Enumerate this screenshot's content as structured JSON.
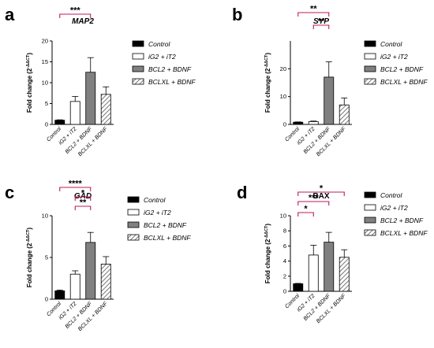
{
  "colors": {
    "control": "#000000",
    "ig2": "#ffffff",
    "bcl2": "#808080",
    "bclxl_hatch": "#888888"
  },
  "chart_data": [
    {
      "panel": "a",
      "type": "bar",
      "title": "MAP2",
      "title_italic": true,
      "ylabel": "Fold change (2",
      "ylabel_sup": "-ΔΔCT",
      "ylabel_close": ")",
      "ylim": [
        0,
        20
      ],
      "yticks": [
        "0",
        "5",
        "10",
        "15",
        "20"
      ],
      "categories": [
        "Control",
        "iG2 + iT2",
        "BCL2 + BDNF",
        "BCLXL + BDNF"
      ],
      "values": [
        1.0,
        5.5,
        12.5,
        7.2
      ],
      "errors": [
        0.1,
        1.2,
        3.5,
        1.8
      ],
      "significance": [
        {
          "label": "***",
          "from": 0,
          "to": 2
        }
      ],
      "legend": [
        "Control",
        "iG2 + iT2",
        "BCL2 + BDNF",
        "BCLXL + BDNF"
      ]
    },
    {
      "panel": "b",
      "type": "bar",
      "title": "SYP",
      "title_italic": true,
      "ylabel": "Fold change (2",
      "ylabel_sup": "-ΔΔCT",
      "ylabel_close": ")",
      "ylim": [
        0,
        30
      ],
      "yticks": [
        "0",
        "10",
        "20"
      ],
      "categories": [
        "Control",
        "iG2 + iT2",
        "BCL2 + BDNF",
        "BCLXL + BDNF"
      ],
      "values": [
        0.8,
        1.0,
        17.0,
        7.0
      ],
      "errors": [
        0.1,
        0.2,
        5.5,
        2.5
      ],
      "significance": [
        {
          "label": "**",
          "from": 0,
          "to": 2
        },
        {
          "label": "**",
          "from": 1,
          "to": 2
        }
      ],
      "legend": [
        "Control",
        "iG2 + iT2",
        "BCL2 + BDNF",
        "BCLXL + BDNF"
      ]
    },
    {
      "panel": "c",
      "type": "bar",
      "title": "GAD",
      "title_italic": true,
      "ylabel": "Fold change (2",
      "ylabel_sup": "-ΔΔCT",
      "ylabel_close": ")",
      "ylim": [
        0,
        10
      ],
      "yticks": [
        "0",
        "5",
        "10"
      ],
      "categories": [
        "Control",
        "iG2 + iT2",
        "BCL2 + BDNF",
        "BCLXL + BDNF"
      ],
      "values": [
        1.0,
        3.0,
        6.8,
        4.2
      ],
      "errors": [
        0.1,
        0.4,
        1.2,
        0.9
      ],
      "significance": [
        {
          "label": "****",
          "from": 0,
          "to": 2
        },
        {
          "label": "*",
          "from": 1,
          "to": 2
        },
        {
          "label": "**",
          "from": 1,
          "to": 2
        }
      ],
      "legend": [
        "Control",
        "iG2 + iT2",
        "BCL2 + BDNF",
        "BCLXL + BDNF"
      ]
    },
    {
      "panel": "d",
      "type": "bar",
      "title": "BAX",
      "title_italic": false,
      "ylabel": "Fold change (2",
      "ylabel_sup": "-ΔΔCT",
      "ylabel_close": ")",
      "ylim": [
        0,
        10
      ],
      "yticks": [
        "0",
        "2",
        "4",
        "6",
        "8",
        "10"
      ],
      "categories": [
        "Control",
        "iG2 + iT2",
        "BCL2 + BDNF",
        "BCLXL + BDNF"
      ],
      "values": [
        1.0,
        4.8,
        6.5,
        4.5
      ],
      "errors": [
        0.05,
        1.3,
        1.3,
        1.0
      ],
      "significance": [
        {
          "label": "*",
          "from": 0,
          "to": 3
        },
        {
          "label": "***",
          "from": 0,
          "to": 2
        },
        {
          "label": "*",
          "from": 0,
          "to": 1
        }
      ],
      "legend": [
        "Control",
        "iG2 + iT2",
        "BCL2 + BDNF",
        "BCLXL + BDNF"
      ]
    }
  ]
}
